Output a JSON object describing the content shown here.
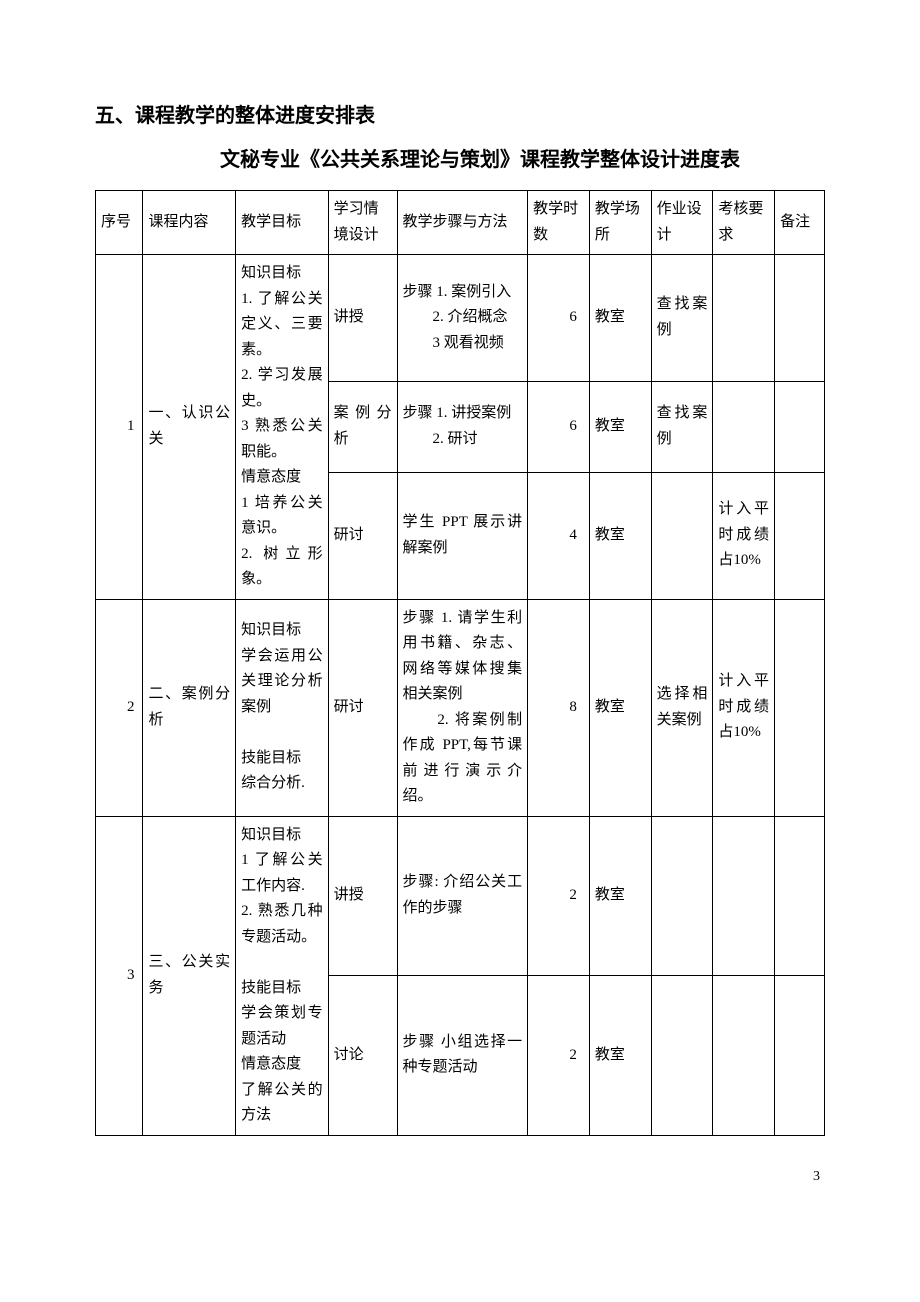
{
  "heading": "五、课程教学的整体进度安排表",
  "subtitle": "文秘专业《公共关系理论与策划》课程教学整体设计进度表",
  "page_number": "3",
  "columns": {
    "num": "序号",
    "content": "课程内容",
    "goal": "教学目标",
    "context": "学习情境设计",
    "steps": "教学步骤与方法",
    "hours": "教学时数",
    "place": "教学场所",
    "homework": "作业设计",
    "assess": "考核要求",
    "note": "备注"
  },
  "groups": [
    {
      "num": "1",
      "content": "一、认识公关",
      "goal": "知识目标\n1. 了解公关定义、三要素。\n2. 学习发展史。\n3 熟悉公关职能。\n情意态度\n1 培养公关意识。\n2. 树立形象。",
      "rows": [
        {
          "context": "讲授",
          "steps": "步骤 1. 案例引入\n　　2. 介绍概念\n　　3 观看视频",
          "hours": "6",
          "place": "教室",
          "homework": "查找案例",
          "assess": "",
          "note": ""
        },
        {
          "context": "案例分析",
          "steps": "步骤 1. 讲授案例\n　　2. 研讨",
          "hours": "6",
          "place": "教室",
          "homework": "查找案例",
          "assess": "",
          "note": ""
        },
        {
          "context": "研讨",
          "steps": "学生 PPT 展示讲解案例",
          "hours": "4",
          "place": "教室",
          "homework": "",
          "assess": "计入平时成绩占10%",
          "note": ""
        }
      ]
    },
    {
      "num": "2",
      "content": "二、案例分析",
      "goal": "知识目标\n学会运用公关理论分析案例\n\n技能目标\n综合分析.",
      "rows": [
        {
          "context": "研讨",
          "steps": "步骤 1. 请学生利用书籍、杂志、网络等媒体搜集相关案例\n　　2. 将案例制作成 PPT,每节课前进行演示介绍。",
          "hours": "8",
          "place": "教室",
          "homework": "选择相关案例",
          "assess": "计入平时成绩占10%",
          "note": ""
        }
      ]
    },
    {
      "num": "3",
      "content": "三、公关实务",
      "goal": "知识目标\n1 了解公关工作内容.\n2. 熟悉几种专题活动。\n\n技能目标\n学会策划专题活动\n情意态度\n了解公关的方法",
      "rows": [
        {
          "context": "讲授",
          "steps": "步骤: 介绍公关工作的步骤",
          "hours": "2",
          "place": "教室",
          "homework": "",
          "assess": "",
          "note": ""
        },
        {
          "context": "讨论",
          "steps": "步骤 小组选择一种专题活动",
          "hours": "2",
          "place": "教室",
          "homework": "",
          "assess": "",
          "note": ""
        }
      ]
    }
  ]
}
